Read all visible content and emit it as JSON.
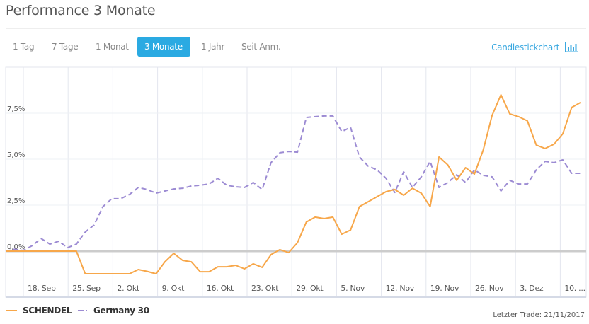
{
  "title": "Performance 3 Monate",
  "tabs": [
    {
      "label": "1 Tag",
      "active": false
    },
    {
      "label": "7 Tage",
      "active": false
    },
    {
      "label": "1 Monat",
      "active": false
    },
    {
      "label": "3 Monate",
      "active": true
    },
    {
      "label": "1 Jahr",
      "active": false
    },
    {
      "label": "Seit Anm.",
      "active": false
    }
  ],
  "candlestick_label": "Candlestickchart",
  "candlestick_icon": "bar-chart-icon",
  "last_trade": "Letzter Trade: 21/11/2017",
  "colors": {
    "accent": "#2aaae2",
    "schendel": "#f7a74a",
    "germany30": "#9c8bd3"
  },
  "chart_data": {
    "type": "line",
    "title": "Performance 3 Monate",
    "xlabel": "",
    "ylabel": "",
    "ylim": [
      -1.9,
      10.0
    ],
    "yticks": [
      0,
      2.5,
      5.0,
      7.5
    ],
    "ytick_labels": [
      "0,0%",
      "2,5%",
      "5,0%",
      "7,5%"
    ],
    "xtick_labels": [
      "18. Sep",
      "25. Sep",
      "2. Okt",
      "9. Okt",
      "16. Okt",
      "23. Okt",
      "29. Okt",
      "5. Nov",
      "12. Nov",
      "19. Nov",
      "26. Nov",
      "3. Dez",
      "10. ..."
    ],
    "grid": true,
    "legend": "bottom-left",
    "series": [
      {
        "name": "SCHENDEL",
        "style": "solid",
        "values": [
          0,
          0,
          0,
          0,
          0,
          0,
          0,
          0,
          0,
          -1.23,
          -1.23,
          -1.23,
          -1.23,
          -1.23,
          -1.23,
          -1.0,
          -1.1,
          -1.23,
          -0.58,
          -0.12,
          -0.5,
          -0.58,
          -1.12,
          -1.12,
          -0.85,
          -0.85,
          -0.77,
          -0.96,
          -0.69,
          -0.88,
          -0.19,
          0.08,
          -0.08,
          0.46,
          1.58,
          1.85,
          1.77,
          1.85,
          0.92,
          1.15,
          2.42,
          2.69,
          2.96,
          3.23,
          3.35,
          3.04,
          3.42,
          3.15,
          2.42,
          5.12,
          4.69,
          3.85,
          4.54,
          4.19,
          5.5,
          7.38,
          8.5,
          7.46,
          7.31,
          7.08,
          5.77,
          5.58,
          5.81,
          6.38,
          7.81,
          8.08
        ]
      },
      {
        "name": "Germany 30",
        "style": "dashed",
        "values": [
          0,
          0.1,
          0.04,
          0.3,
          0.69,
          0.38,
          0.54,
          0.19,
          0.38,
          1.04,
          1.42,
          2.42,
          2.85,
          2.85,
          3.08,
          3.46,
          3.35,
          3.15,
          3.27,
          3.38,
          3.42,
          3.54,
          3.58,
          3.65,
          3.96,
          3.58,
          3.5,
          3.46,
          3.73,
          3.35,
          4.81,
          5.35,
          5.42,
          5.38,
          7.27,
          7.31,
          7.35,
          7.35,
          6.5,
          6.73,
          5.12,
          4.62,
          4.42,
          3.96,
          3.19,
          4.31,
          3.46,
          4.04,
          4.88,
          3.46,
          3.73,
          4.15,
          3.73,
          4.42,
          4.12,
          4.04,
          3.27,
          3.85,
          3.65,
          3.65,
          4.42,
          4.88,
          4.81,
          4.96,
          4.23,
          4.23
        ]
      }
    ]
  }
}
